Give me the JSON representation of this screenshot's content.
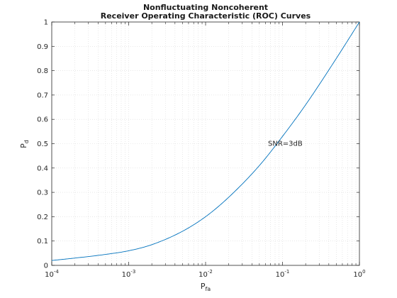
{
  "chart_data": {
    "type": "line",
    "title": [
      "Nonfluctuating Noncoherent",
      "Receiver Operating Characteristic (ROC) Curves"
    ],
    "xlabel": {
      "base": "P",
      "sub": "fa"
    },
    "ylabel": {
      "base": "P",
      "sub": "d"
    },
    "x_scale": "log",
    "xlim": [
      0.0001,
      1
    ],
    "ylim": [
      0,
      1
    ],
    "x_ticks": [
      {
        "value": 0.0001,
        "base": "10",
        "exp": "-4"
      },
      {
        "value": 0.001,
        "base": "10",
        "exp": "-3"
      },
      {
        "value": 0.01,
        "base": "10",
        "exp": "-2"
      },
      {
        "value": 0.1,
        "base": "10",
        "exp": "-1"
      },
      {
        "value": 1,
        "base": "10",
        "exp": "0"
      }
    ],
    "y_ticks": [
      "0",
      "0.1",
      "0.2",
      "0.3",
      "0.4",
      "0.5",
      "0.6",
      "0.7",
      "0.8",
      "0.9",
      "1"
    ],
    "grid": true,
    "line_color": "#0072bd",
    "series": [
      {
        "x": [
          0.0001,
          0.0002,
          0.0005,
          0.001,
          0.002,
          0.005,
          0.01,
          0.02,
          0.05,
          0.1,
          0.2,
          0.5,
          1
        ],
        "y": [
          0.02,
          0.03,
          0.045,
          0.06,
          0.085,
          0.14,
          0.2,
          0.28,
          0.41,
          0.53,
          0.66,
          0.85,
          1.0
        ]
      }
    ],
    "annotations": [
      {
        "text": "SNR=3dB",
        "x": 0.08,
        "y": 0.5
      }
    ]
  }
}
